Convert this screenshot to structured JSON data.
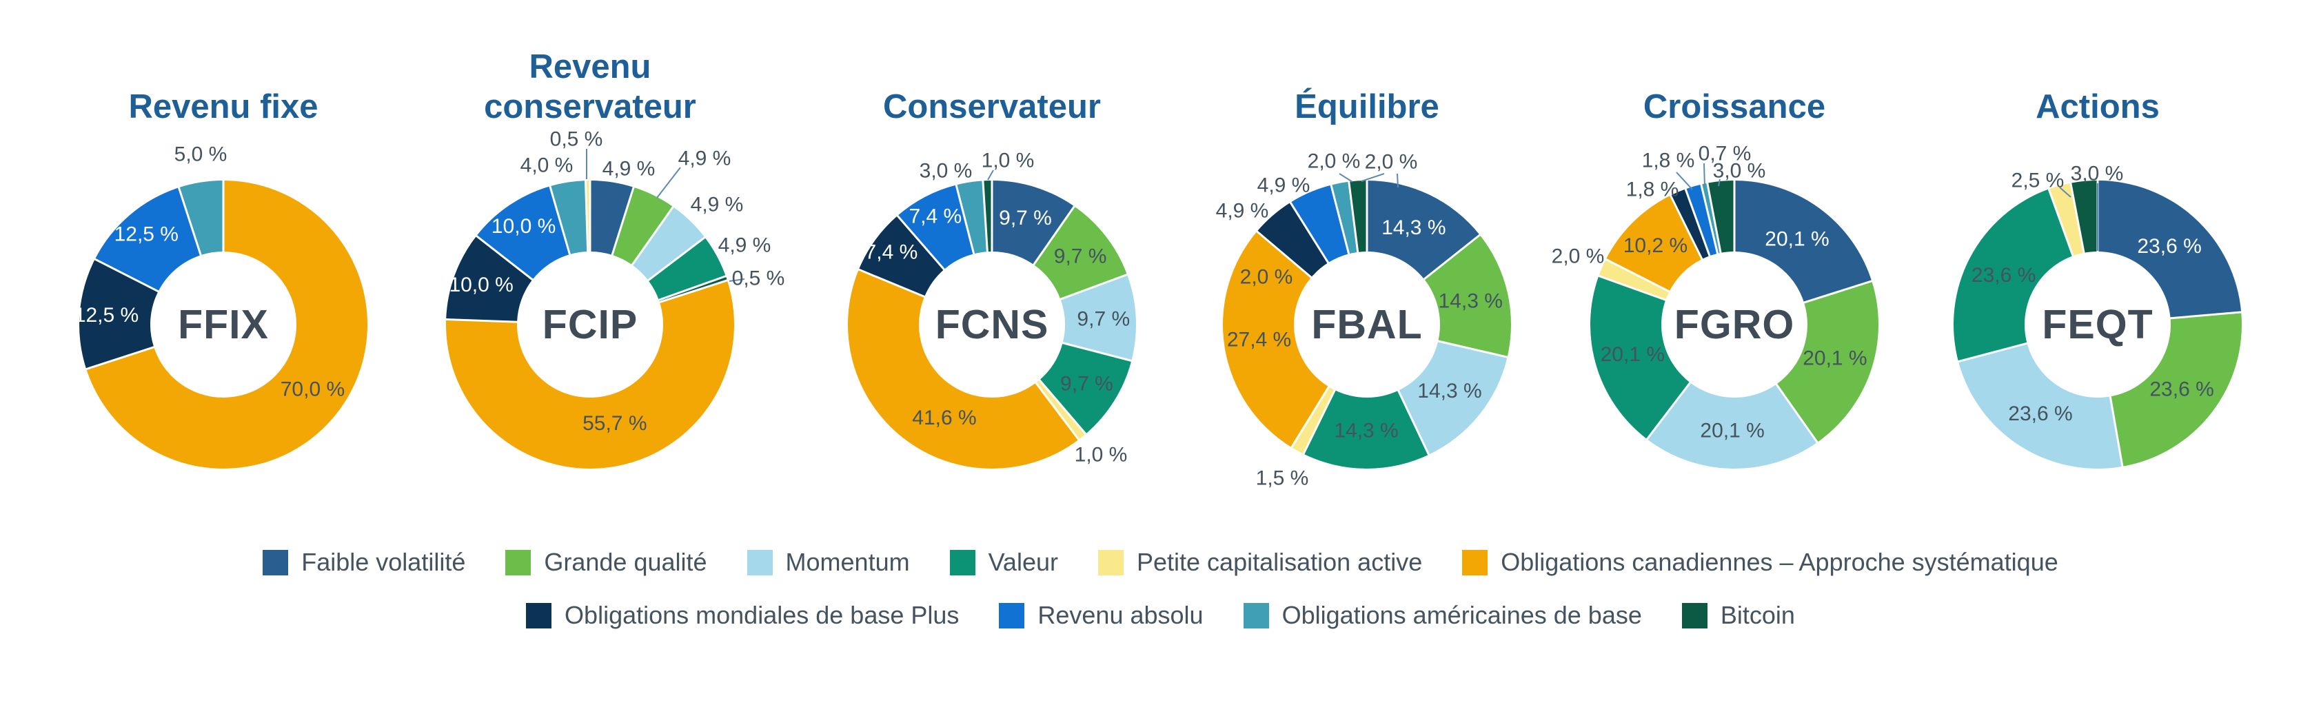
{
  "palette": {
    "faible_volatilite": "#285E90",
    "grande_qualite": "#6CBE4B",
    "momentum": "#A5D8EB",
    "valeur": "#0C9376",
    "petite_capitalisation_active": "#FAE98A",
    "obligations_canadiennes": "#F2A705",
    "obligations_mondiales": "#0C3256",
    "revenu_absolu": "#1272D3",
    "obligations_americaines": "#3E9FB5",
    "bitcoin": "#0C5A43"
  },
  "colors": {
    "title": "#1E5F97",
    "label": "#44535E",
    "code": "#3F4C57",
    "inside_label_light": "#FFFFFF",
    "leader_line": "#5C8AB4",
    "background": "#FFFFFF"
  },
  "chart_data": [
    {
      "type": "donut",
      "fund": "FFIX",
      "title": "Revenu fixe",
      "slices": [
        {
          "category": "Obligations canadiennes – Approche systématique",
          "palette_key": "obligations_canadiennes",
          "value": 70.0,
          "label": "70,0 %"
        },
        {
          "category": "Obligations mondiales de base Plus",
          "palette_key": "obligations_mondiales",
          "value": 12.5,
          "label": "12,5 %"
        },
        {
          "category": "Revenu absolu",
          "palette_key": "revenu_absolu",
          "value": 12.5,
          "label": "12,5 %"
        },
        {
          "category": "Obligations américaines de base",
          "palette_key": "obligations_americaines",
          "value": 5.0,
          "label": "5,0 %"
        }
      ]
    },
    {
      "type": "donut",
      "fund": "FCIP",
      "title": "Revenu\nconservateur",
      "slices": [
        {
          "category": "Faible volatilité",
          "palette_key": "faible_volatilite",
          "value": 4.9,
          "label": "4,9 %"
        },
        {
          "category": "Grande qualité",
          "palette_key": "grande_qualite",
          "value": 4.9,
          "label": "4,9 %"
        },
        {
          "category": "Momentum",
          "palette_key": "momentum",
          "value": 4.9,
          "label": "4,9 %"
        },
        {
          "category": "Valeur",
          "palette_key": "valeur",
          "value": 4.9,
          "label": "4,9 %"
        },
        {
          "category": "Bitcoin",
          "palette_key": "bitcoin",
          "value": 0.5,
          "label": "0,5 %"
        },
        {
          "category": "Obligations canadiennes – Approche systématique",
          "palette_key": "obligations_canadiennes",
          "value": 55.7,
          "label": "55,7 %"
        },
        {
          "category": "Obligations mondiales de base Plus",
          "palette_key": "obligations_mondiales",
          "value": 10.0,
          "label": "10,0 %"
        },
        {
          "category": "Revenu absolu",
          "palette_key": "revenu_absolu",
          "value": 10.0,
          "label": "10,0 %"
        },
        {
          "category": "Obligations américaines de base",
          "palette_key": "obligations_americaines",
          "value": 4.0,
          "label": "4,0 %"
        },
        {
          "category": "Petite capitalisation active",
          "palette_key": "petite_capitalisation_active",
          "value": 0.5,
          "label": "0,5 %"
        }
      ]
    },
    {
      "type": "donut",
      "fund": "FCNS",
      "title": "Conservateur",
      "slices": [
        {
          "category": "Faible volatilité",
          "palette_key": "faible_volatilite",
          "value": 9.7,
          "label": "9,7 %"
        },
        {
          "category": "Grande qualité",
          "palette_key": "grande_qualite",
          "value": 9.7,
          "label": "9,7 %"
        },
        {
          "category": "Momentum",
          "palette_key": "momentum",
          "value": 9.7,
          "label": "9,7 %"
        },
        {
          "category": "Valeur",
          "palette_key": "valeur",
          "value": 9.7,
          "label": "9,7 %"
        },
        {
          "category": "Petite capitalisation active",
          "palette_key": "petite_capitalisation_active",
          "value": 1.0,
          "label": "1,0 %"
        },
        {
          "category": "Obligations canadiennes – Approche systématique",
          "palette_key": "obligations_canadiennes",
          "value": 41.6,
          "label": "41,6 %"
        },
        {
          "category": "Obligations mondiales de base Plus",
          "palette_key": "obligations_mondiales",
          "value": 7.4,
          "label": "7,4 %"
        },
        {
          "category": "Revenu absolu",
          "palette_key": "revenu_absolu",
          "value": 7.4,
          "label": "7,4 %"
        },
        {
          "category": "Obligations américaines de base",
          "palette_key": "obligations_americaines",
          "value": 3.0,
          "label": "3,0 %"
        },
        {
          "category": "Bitcoin",
          "palette_key": "bitcoin",
          "value": 1.0,
          "label": "1,0 %"
        }
      ]
    },
    {
      "type": "donut",
      "fund": "FBAL",
      "title": "Équilibre",
      "slices": [
        {
          "category": "Faible volatilité",
          "palette_key": "faible_volatilite",
          "value": 14.3,
          "label": "14,3 %"
        },
        {
          "category": "Grande qualité",
          "palette_key": "grande_qualite",
          "value": 14.3,
          "label": "14,3 %"
        },
        {
          "category": "Momentum",
          "palette_key": "momentum",
          "value": 14.3,
          "label": "14,3 %"
        },
        {
          "category": "Valeur",
          "palette_key": "valeur",
          "value": 14.3,
          "label": "14,3 %"
        },
        {
          "category": "Petite capitalisation active",
          "palette_key": "petite_capitalisation_active",
          "value": 1.5,
          "label": "1,5 %"
        },
        {
          "category": "Obligations canadiennes – Approche systématique",
          "palette_key": "obligations_canadiennes",
          "value": 27.4,
          "label": "27,4 %"
        },
        {
          "category": "Obligations mondiales de base Plus",
          "palette_key": "obligations_mondiales",
          "value": 4.9,
          "label": "4,9 %"
        },
        {
          "category": "Revenu absolu",
          "palette_key": "revenu_absolu",
          "value": 4.9,
          "label": "4,9 %"
        },
        {
          "category": "Obligations américaines de base",
          "palette_key": "obligations_americaines",
          "value": 2.0,
          "label": "2,0 %"
        },
        {
          "category": "Bitcoin",
          "palette_key": "bitcoin",
          "value": 2.0,
          "label": "2,0 %"
        }
      ],
      "extra_labels": [
        {
          "text": "2,0 %"
        }
      ]
    },
    {
      "type": "donut",
      "fund": "FGRO",
      "title": "Croissance",
      "slices": [
        {
          "category": "Faible volatilité",
          "palette_key": "faible_volatilite",
          "value": 20.1,
          "label": "20,1 %"
        },
        {
          "category": "Grande qualité",
          "palette_key": "grande_qualite",
          "value": 20.1,
          "label": "20,1 %"
        },
        {
          "category": "Momentum",
          "palette_key": "momentum",
          "value": 20.1,
          "label": "20,1 %"
        },
        {
          "category": "Valeur",
          "palette_key": "valeur",
          "value": 20.1,
          "label": "20,1 %"
        },
        {
          "category": "Petite capitalisation active",
          "palette_key": "petite_capitalisation_active",
          "value": 2.0,
          "label": "2,0 %"
        },
        {
          "category": "Obligations canadiennes – Approche systématique",
          "palette_key": "obligations_canadiennes",
          "value": 10.2,
          "label": "10,2 %"
        },
        {
          "category": "Obligations mondiales de base Plus",
          "palette_key": "obligations_mondiales",
          "value": 1.8,
          "label": "1,8 %"
        },
        {
          "category": "Revenu absolu",
          "palette_key": "revenu_absolu",
          "value": 1.8,
          "label": "1,8 %"
        },
        {
          "category": "Obligations américaines de base",
          "palette_key": "obligations_americaines",
          "value": 0.7,
          "label": "0,7 %"
        },
        {
          "category": "Bitcoin",
          "palette_key": "bitcoin",
          "value": 3.0,
          "label": "3,0 %"
        }
      ]
    },
    {
      "type": "donut",
      "fund": "FEQT",
      "title": "Actions",
      "slices": [
        {
          "category": "Faible volatilité",
          "palette_key": "faible_volatilite",
          "value": 23.6,
          "label": "23,6 %"
        },
        {
          "category": "Grande qualité",
          "palette_key": "grande_qualite",
          "value": 23.6,
          "label": "23,6 %"
        },
        {
          "category": "Momentum",
          "palette_key": "momentum",
          "value": 23.6,
          "label": "23,6 %"
        },
        {
          "category": "Valeur",
          "palette_key": "valeur",
          "value": 23.6,
          "label": "23,6 %"
        },
        {
          "category": "Petite capitalisation active",
          "palette_key": "petite_capitalisation_active",
          "value": 2.5,
          "label": "2,5 %"
        },
        {
          "category": "Bitcoin",
          "palette_key": "bitcoin",
          "value": 3.0,
          "label": "3,0 %"
        }
      ]
    }
  ],
  "legend": {
    "row1": [
      {
        "label": "Faible volatilité",
        "palette_key": "faible_volatilite"
      },
      {
        "label": "Grande qualité",
        "palette_key": "grande_qualite"
      },
      {
        "label": "Momentum",
        "palette_key": "momentum"
      },
      {
        "label": "Valeur",
        "palette_key": "valeur"
      },
      {
        "label": "Petite capitalisation active",
        "palette_key": "petite_capitalisation_active"
      },
      {
        "label": "Obligations canadiennes – Approche systématique",
        "palette_key": "obligations_canadiennes"
      }
    ],
    "row2": [
      {
        "label": "Obligations mondiales de base Plus",
        "palette_key": "obligations_mondiales"
      },
      {
        "label": "Revenu absolu",
        "palette_key": "revenu_absolu"
      },
      {
        "label": "Obligations américaines de base",
        "palette_key": "obligations_americaines"
      },
      {
        "label": "Bitcoin",
        "palette_key": "bitcoin"
      }
    ]
  }
}
